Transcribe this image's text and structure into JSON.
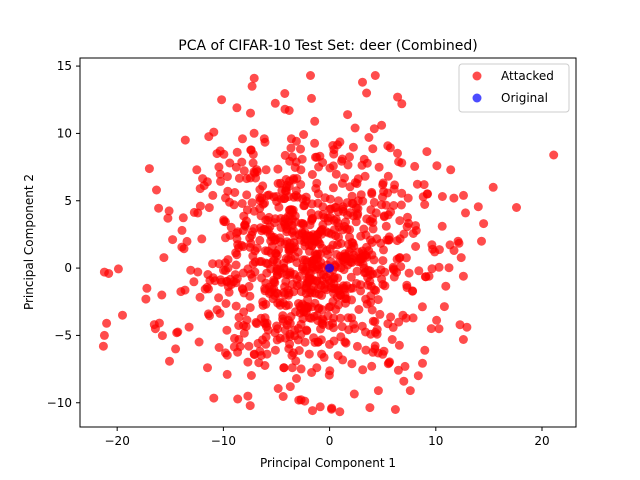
{
  "chart_data": {
    "type": "scatter",
    "title": "PCA of CIFAR-10 Test Set: deer (Combined)",
    "xlabel": "Principal Component 1",
    "ylabel": "Principal Component 2",
    "xlim": [
      -23.5,
      23.2
    ],
    "ylim": [
      -11.8,
      15.6
    ],
    "xticks": [
      -20,
      -10,
      0,
      10,
      20
    ],
    "yticks": [
      -10,
      -5,
      0,
      5,
      10,
      15
    ],
    "grid": false,
    "legend_position": "top-right",
    "colors": {
      "attacked": "#ff0000",
      "original": "#0000ff",
      "axes": "#000000",
      "legend_border": "#cccccc"
    },
    "series": [
      {
        "name": "Attacked",
        "color": "#ff0000",
        "cloud": {
          "count": 900,
          "center": [
            -2,
            0.5
          ],
          "spread": [
            5.5,
            4.2
          ]
        },
        "points": [
          [
            -21.2,
            -0.3
          ],
          [
            -20.8,
            -0.4
          ],
          [
            -21,
            -4.1
          ],
          [
            -21.2,
            -5
          ],
          [
            -21.3,
            -5.8
          ],
          [
            -19.5,
            -3.5
          ],
          [
            -17.2,
            -1.5
          ],
          [
            -17.3,
            -2.3
          ],
          [
            -16.3,
            5.8
          ],
          [
            -16.5,
            -4.2
          ],
          [
            -16.4,
            -4.5
          ],
          [
            -15.8,
            -2
          ],
          [
            -14.4,
            -4.8
          ],
          [
            -14.5,
            -6
          ],
          [
            -13.9,
            2.8
          ],
          [
            -12.5,
            7.3
          ],
          [
            -11.5,
            -7.4
          ],
          [
            -10.9,
            10.1
          ],
          [
            -11,
            5.4
          ],
          [
            -10.6,
            8.5
          ],
          [
            -10.3,
            8.7
          ],
          [
            -10.6,
            -3.1
          ],
          [
            -10.4,
            -5.9
          ],
          [
            -9.8,
            -6.3
          ],
          [
            -9.4,
            7.8
          ],
          [
            -8.7,
            8.6
          ],
          [
            -8.2,
            9.6
          ],
          [
            -7.6,
            -5.8
          ],
          [
            -7.3,
            13.5
          ],
          [
            -7.1,
            14.1
          ],
          [
            -7.2,
            7.8
          ],
          [
            -6.3,
            6.1
          ],
          [
            -5.1,
            -6.1
          ],
          [
            -4.9,
            -4.5
          ],
          [
            -4.2,
            11.8
          ],
          [
            -3.8,
            11.7
          ],
          [
            -3.6,
            9.6
          ],
          [
            -3.7,
            -8.8
          ],
          [
            -3.4,
            -6.3
          ],
          [
            -3.5,
            -1.2
          ],
          [
            -2.9,
            -9.8
          ],
          [
            -2.7,
            7.3
          ],
          [
            -2.5,
            3.3
          ],
          [
            -2.2,
            2.1
          ],
          [
            -2.1,
            -0.8
          ],
          [
            -1.8,
            14.3
          ],
          [
            -1.7,
            12.6
          ],
          [
            -1.4,
            10.9
          ],
          [
            -1.2,
            -7.4
          ],
          [
            -1.1,
            -5.5
          ],
          [
            -0.8,
            2.8
          ],
          [
            -0.6,
            -3.9
          ],
          [
            -0.4,
            -1.2
          ],
          [
            0.2,
            -10.4
          ],
          [
            0.3,
            9.1
          ],
          [
            0.5,
            4.5
          ],
          [
            0.8,
            -6.5
          ],
          [
            1.2,
            8.1
          ],
          [
            1.4,
            6.7
          ],
          [
            1.7,
            11.4
          ],
          [
            1.6,
            -1.3
          ],
          [
            2.1,
            -7.1
          ],
          [
            2.4,
            10.4
          ],
          [
            2.6,
            3.9
          ],
          [
            3.1,
            13.8
          ],
          [
            3.4,
            -2.3
          ],
          [
            3.7,
            9.7
          ],
          [
            4.3,
            14.3
          ],
          [
            4.4,
            4.1
          ],
          [
            4.6,
            -9.1
          ],
          [
            4.9,
            10.6
          ],
          [
            5,
            -6.4
          ],
          [
            5.2,
            -0.3
          ],
          [
            5.6,
            2.1
          ],
          [
            6.2,
            -10.5
          ],
          [
            6.4,
            12.7
          ],
          [
            6.8,
            12.2
          ],
          [
            6.5,
            7.9
          ],
          [
            6.9,
            -3.5
          ],
          [
            7.1,
            -7.3
          ],
          [
            7.4,
            5.2
          ],
          [
            7.6,
            -9.1
          ],
          [
            8.1,
            1.6
          ],
          [
            8.4,
            -0.2
          ],
          [
            8.9,
            6.2
          ],
          [
            9.7,
            1.4
          ],
          [
            9.9,
            1.2
          ],
          [
            10.1,
            7.6
          ],
          [
            10.3,
            -4.5
          ],
          [
            10.6,
            3.1
          ],
          [
            11.4,
            7.3
          ],
          [
            11.7,
            5.2
          ],
          [
            12.1,
            2
          ],
          [
            12.6,
            -0.6
          ],
          [
            12.6,
            -5.3
          ],
          [
            12.8,
            4.1
          ],
          [
            14.3,
            2
          ],
          [
            14.5,
            3.3
          ],
          [
            15.4,
            6
          ],
          [
            17.6,
            4.5
          ],
          [
            21.1,
            8.4
          ]
        ]
      },
      {
        "name": "Original",
        "color": "#0000ff",
        "points": [
          [
            0,
            0
          ]
        ]
      }
    ]
  }
}
